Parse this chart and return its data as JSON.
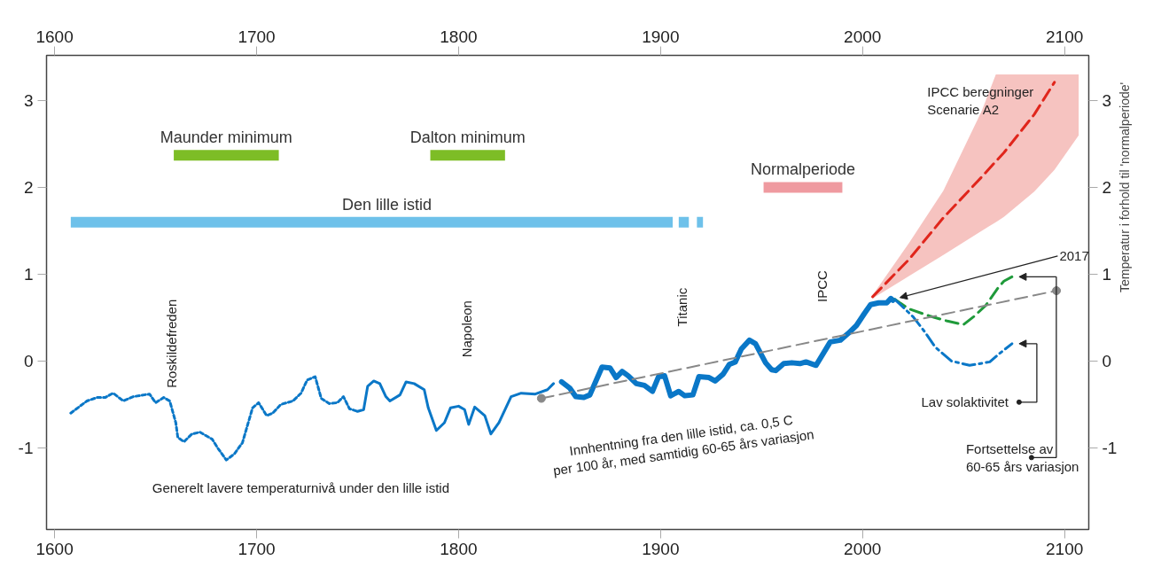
{
  "chart_data": {
    "type": "line",
    "xlim": [
      1596,
      2112
    ],
    "ylim": [
      -1.94,
      3.52
    ],
    "xticks": [
      1600,
      1700,
      1800,
      1900,
      2000,
      2100
    ],
    "x2lim": [
      1596,
      2112
    ],
    "x2ticks": [
      1600,
      1700,
      1800,
      1900,
      2000,
      2100
    ],
    "yticks": [
      -1,
      0,
      1,
      2,
      3
    ],
    "y2lim": [
      -1.94,
      3.52
    ],
    "y2ticks": [
      -1,
      0,
      1,
      2,
      3
    ],
    "y2label": "Temperatur i forhold til 'normalperiode'",
    "annotations": [
      "Roskildefreden",
      "Napoleon",
      "Titanic",
      "IPCC",
      "Generelt lavere temperaturnivå under den lille istid",
      "Innhentning fra den lille istid, ca. 0,5 C\nper 100 år, med samtidig 60-65 års variasjon",
      "IPCC beregninger\nScenarie A2",
      {
        "text": "2017",
        "x": 2015,
        "y": 0.7
      },
      "Lav solaktivitet",
      "Fortsettelse av\n60-65 års variasjon"
    ],
    "series": [
      {
        "color": "#0a77c7",
        "line_style": "dotted",
        "x": [
          1608,
          1616,
          1621,
          1625,
          1629,
          1634,
          1639,
          1647,
          1650,
          1654,
          1657,
          1660,
          1661,
          1664,
          1668,
          1672,
          1678,
          1681,
          1685,
          1689,
          1693,
          1698,
          1701,
          1705,
          1708,
          1712,
          1718,
          1722,
          1725,
          1729,
          1732,
          1736,
          1740,
          1743,
          1746,
          1750
        ],
        "values": [
          -0.6,
          -0.46,
          -0.42,
          -0.42,
          -0.37,
          -0.46,
          -0.41,
          -0.38,
          -0.48,
          -0.42,
          -0.46,
          -0.71,
          -0.88,
          -0.93,
          -0.84,
          -0.82,
          -0.9,
          -1.01,
          -1.14,
          -1.07,
          -0.94,
          -0.54,
          -0.48,
          -0.63,
          -0.6,
          -0.5,
          -0.46,
          -0.37,
          -0.22,
          -0.18,
          -0.43,
          -0.49,
          -0.48,
          -0.41,
          -0.55,
          -0.58
        ]
      },
      {
        "color": "#0a77c7",
        "line_style": "solid",
        "x": [
          1750,
          1753,
          1755,
          1758,
          1761,
          1764,
          1766,
          1771,
          1774,
          1778,
          1783,
          1785,
          1789,
          1793,
          1796,
          1800,
          1803,
          1805,
          1808,
          1813,
          1816,
          1820,
          1826,
          1831,
          1838,
          1844,
          1847
        ],
        "values": [
          -0.58,
          -0.56,
          -0.29,
          -0.23,
          -0.26,
          -0.41,
          -0.46,
          -0.39,
          -0.24,
          -0.26,
          -0.33,
          -0.54,
          -0.8,
          -0.71,
          -0.54,
          -0.52,
          -0.56,
          -0.73,
          -0.53,
          -0.63,
          -0.84,
          -0.71,
          -0.41,
          -0.37,
          -0.38,
          -0.33,
          -0.26
        ]
      },
      {
        "color": "#0a77c7",
        "line_style": "solid",
        "x": [
          1851,
          1855,
          1858,
          1862,
          1865,
          1871,
          1875,
          1878,
          1881,
          1884,
          1888,
          1892,
          1896,
          1899,
          1902,
          1905,
          1909,
          1912,
          1916,
          1919,
          1924,
          1927,
          1931,
          1934,
          1937,
          1940,
          1944,
          1947,
          1952,
          1955,
          1957,
          1961,
          1965,
          1969,
          1972,
          1977,
          1984,
          1989,
          1993,
          1997,
          2001,
          2004,
          2008,
          2012,
          2014,
          2015
        ],
        "values": [
          -0.24,
          -0.31,
          -0.41,
          -0.42,
          -0.39,
          -0.07,
          -0.08,
          -0.19,
          -0.12,
          -0.17,
          -0.26,
          -0.28,
          -0.35,
          -0.18,
          -0.17,
          -0.4,
          -0.35,
          -0.4,
          -0.39,
          -0.18,
          -0.19,
          -0.23,
          -0.15,
          -0.04,
          -0.01,
          0.14,
          0.24,
          0.2,
          -0.02,
          -0.1,
          -0.11,
          -0.03,
          -0.02,
          -0.03,
          -0.01,
          -0.05,
          0.22,
          0.24,
          0.32,
          0.41,
          0.55,
          0.65,
          0.67,
          0.67,
          0.72,
          0.7
        ]
      },
      {
        "color": "#1f9a3a",
        "line_style": "dashed",
        "x": [
          2016,
          2023,
          2033,
          2042,
          2050,
          2055,
          2061,
          2067,
          2070,
          2074
        ],
        "values": [
          0.71,
          0.6,
          0.52,
          0.46,
          0.42,
          0.51,
          0.64,
          0.84,
          0.92,
          0.97
        ]
      },
      {
        "color": "#0a77c7",
        "line_style": "dashdot",
        "x": [
          2016,
          2025,
          2031,
          2036,
          2044,
          2053,
          2063,
          2068,
          2074
        ],
        "values": [
          0.71,
          0.51,
          0.33,
          0.16,
          0.0,
          -0.05,
          -0.01,
          0.09,
          0.2
        ]
      },
      {
        "color": "#e0261c",
        "line_style": "dashed",
        "x": [
          2005,
          2023,
          2040,
          2059,
          2066,
          2070,
          2085,
          2095,
          2107
        ],
        "values": [
          0.74,
          1.17,
          1.65,
          2.12,
          2.3,
          2.4,
          2.84,
          3.21,
          null
        ],
        "lower": [
          0.72,
          0.98,
          1.22,
          1.5,
          1.6,
          1.66,
          1.95,
          2.2,
          2.6
        ],
        "upper": [
          0.76,
          1.36,
          1.96,
          2.88,
          3.3,
          3.3,
          3.3,
          3.3,
          3.3
        ]
      },
      {
        "color": "#888888",
        "line_style": "dashed",
        "marker": "circle",
        "x": [
          1841,
          2096
        ],
        "values": [
          -0.43,
          0.81
        ]
      },
      {
        "name": "Maunder minimum",
        "color": "#7dbd26",
        "line_style": "solid",
        "x": [
          1659,
          1711
        ],
        "values": [
          2.37,
          2.37
        ]
      },
      {
        "name": "Dalton minimum",
        "color": "#7dbd26",
        "line_style": "solid",
        "x": [
          1786,
          1823
        ],
        "values": [
          2.37,
          2.37
        ]
      },
      {
        "name": "Normalperiode",
        "color": "#ef9aa0",
        "line_style": "solid",
        "x": [
          1951,
          1990
        ],
        "values": [
          2.0,
          2.0
        ]
      },
      {
        "name": "Den lille istid",
        "color": "#6ec1ea",
        "line_style": "solid",
        "x": [
          1608,
          1906,
          1907,
          1909,
          1914,
          1916,
          1918,
          1921
        ],
        "values": [
          1.6,
          1.6,
          null,
          1.6,
          1.6,
          null,
          1.6,
          1.6
        ]
      }
    ]
  }
}
